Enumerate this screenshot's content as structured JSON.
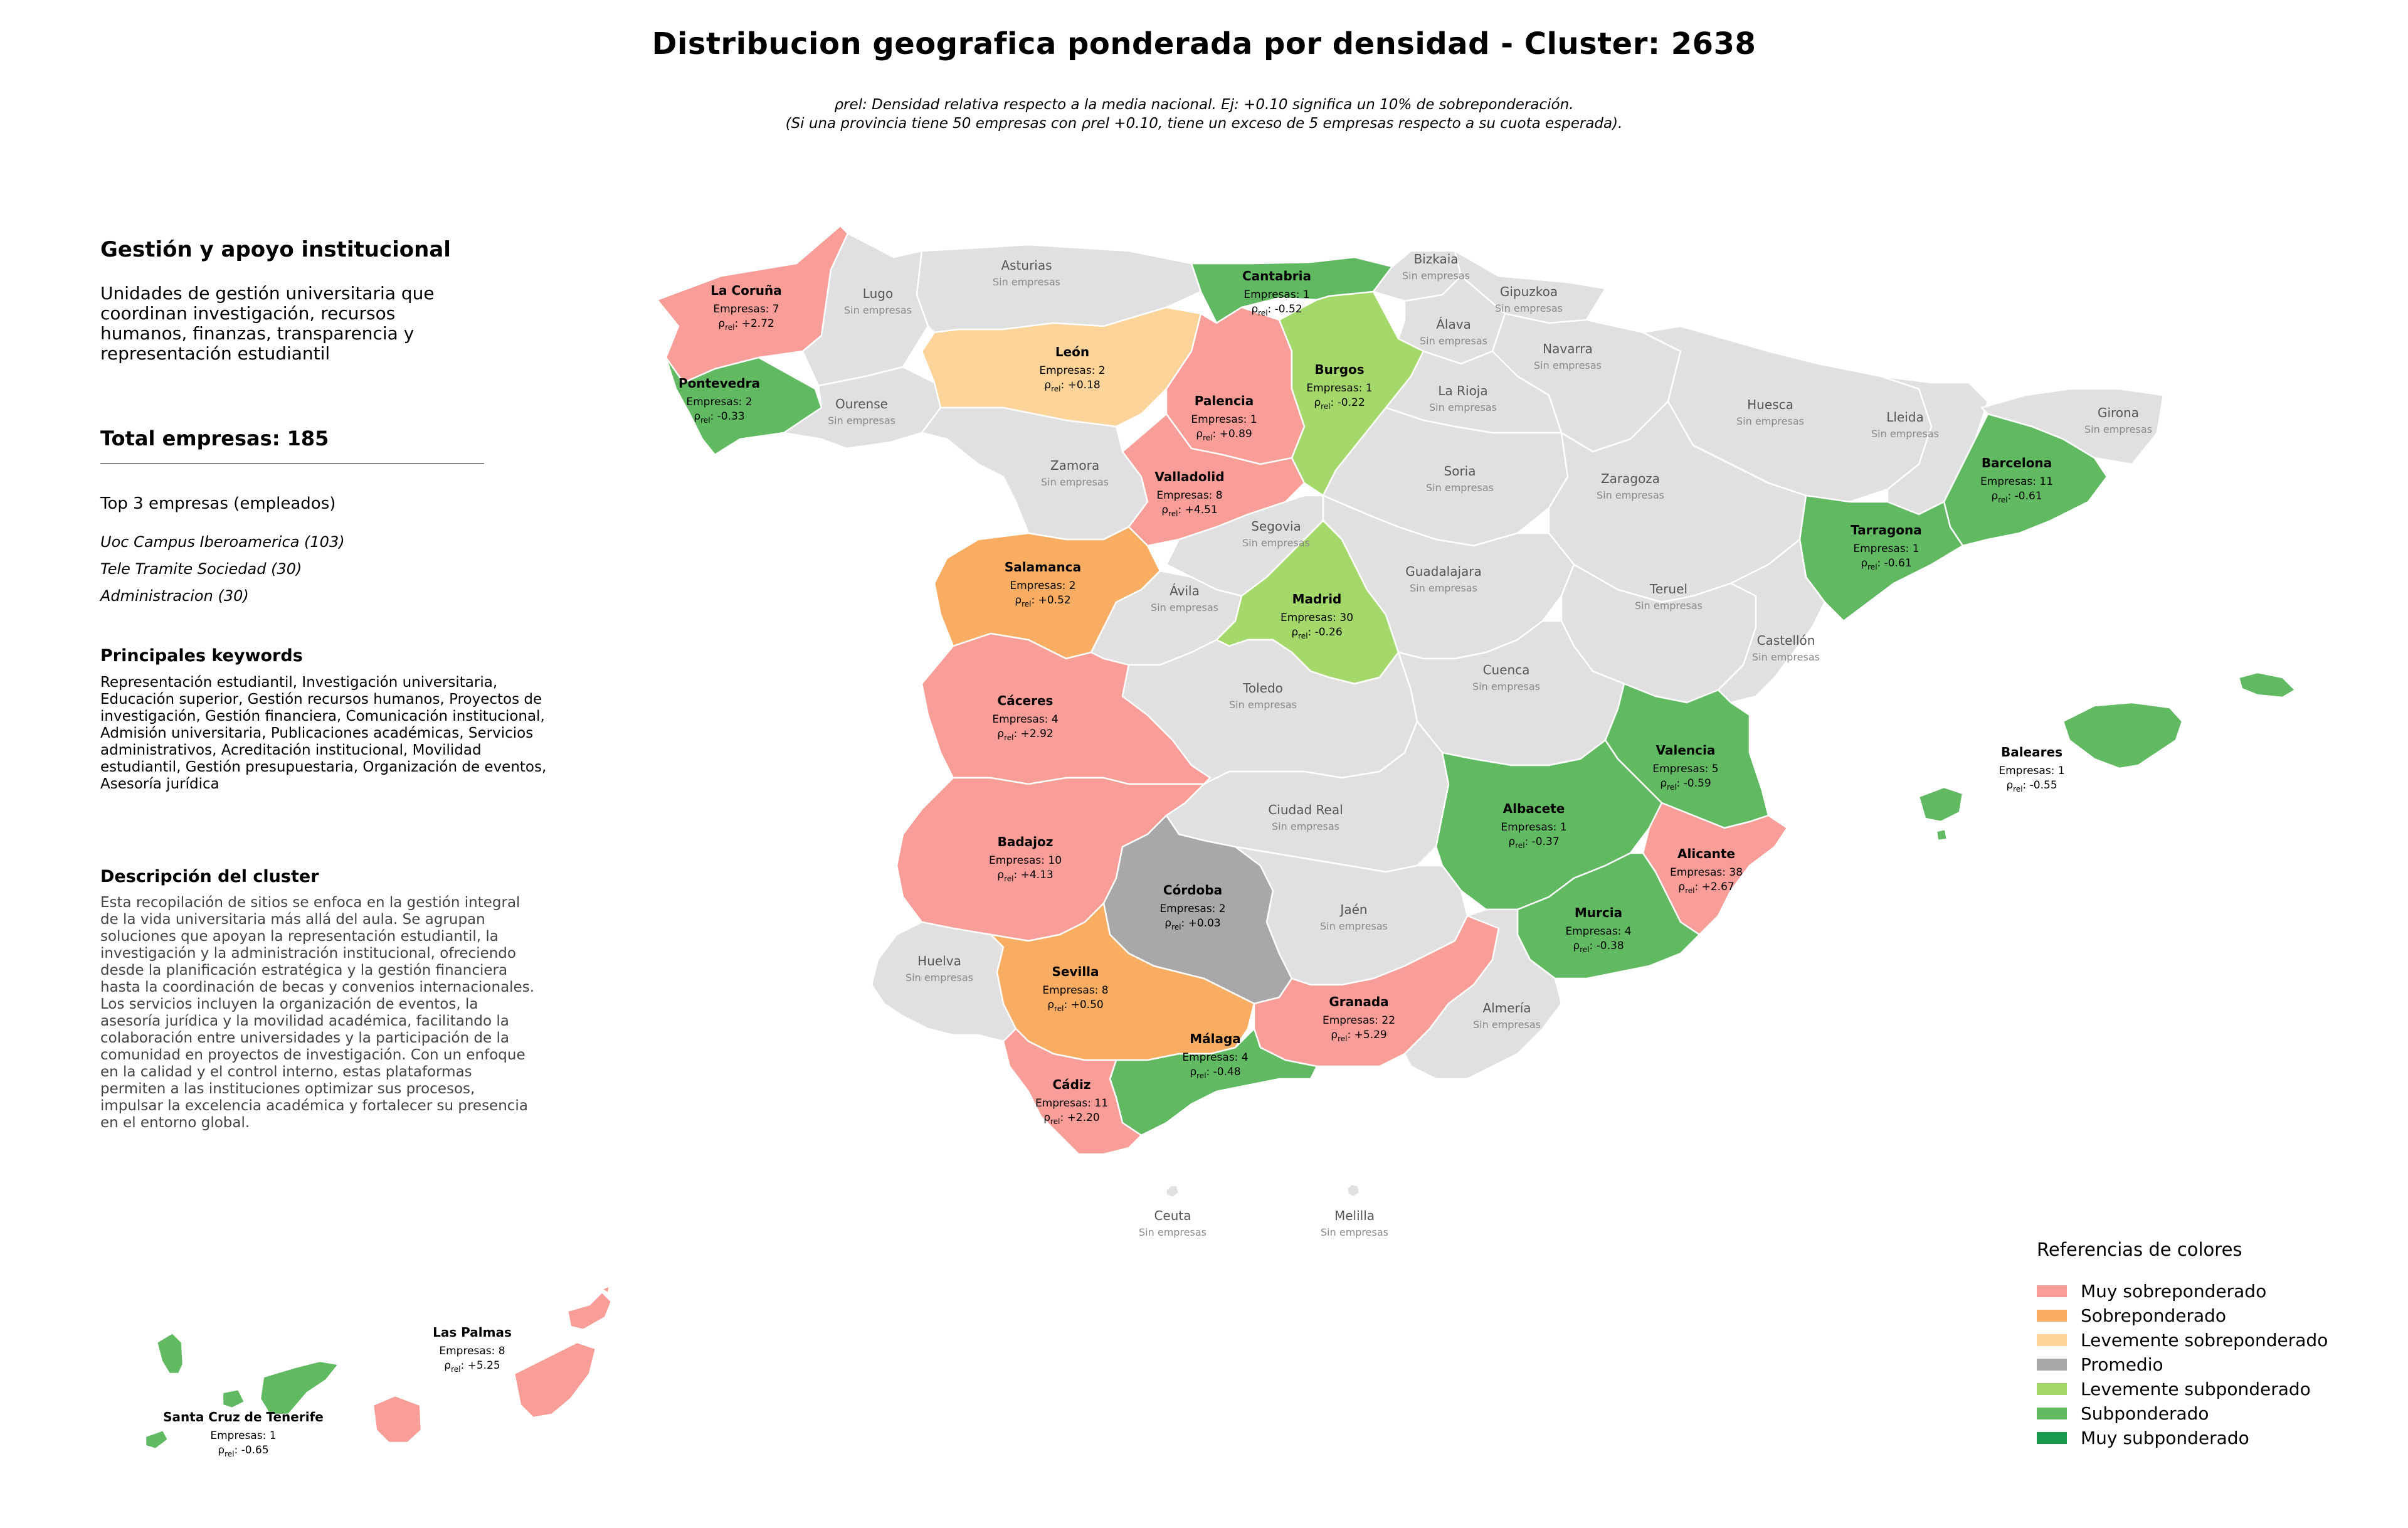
{
  "title": "Distribucion geografica ponderada por densidad - Cluster: 2638",
  "subtitle_line1": "ρrel: Densidad relativa respecto a la media nacional. Ej: +0.10 significa un 10% de sobreponderación.",
  "subtitle_line2": "(Si una provincia tiene 50 empresas con ρrel +0.10, tiene un exceso de 5 empresas respecto a su cuota esperada).",
  "sidebar": {
    "category_title": "Gestión y apoyo institucional",
    "category_description": "Unidades de gestión universitaria que coordinan investigación, recursos humanos, finanzas, transparencia y representación estudiantil",
    "total_label": "Total empresas: 185",
    "top3_title": "Top 3 empresas (empleados)",
    "top3": [
      "Uoc Campus Iberoamerica (103)",
      "Tele Tramite Sociedad (30)",
      "Administracion (30)"
    ],
    "keywords_title": "Principales keywords",
    "keywords": "Representación estudiantil, Investigación universitaria, Educación superior, Gestión recursos humanos, Proyectos de investigación, Gestión financiera, Comunicación institucional, Admisión universitaria, Publicaciones académicas, Servicios administrativos, Acreditación institucional, Movilidad estudiantil, Gestión presupuestaria, Organización de eventos, Asesoría jurídica",
    "description_title": "Descripción del cluster",
    "description": "Esta recopilación de sitios se enfoca en la gestión integral de la vida universitaria más allá del aula. Se agrupan soluciones que apoyan la representación estudiantil, la investigación y la administración institucional, ofreciendo desde la planificación estratégica y la gestión financiera hasta la coordinación de becas y convenios internacionales. Los servicios incluyen la organización de eventos, la asesoría jurídica y la movilidad académica, facilitando la colaboración entre universidades y la participación de la comunidad en proyectos de investigación. Con un enfoque en la calidad y el control interno, estas plataformas permiten a las instituciones optimizar sus procesos, impulsar la excelencia académica y fortalecer su presencia en el entorno global."
  },
  "colors": {
    "muy_sobre": "#f89d97",
    "sobre": "#f8ad62",
    "lev_sobre": "#fcd49a",
    "promedio": "#a8a8a8",
    "lev_sub": "#a5d86a",
    "sub": "#61ba62",
    "muy_sub": "#1a9850",
    "sin": "#e0e0e0",
    "border": "#ffffff"
  },
  "no_companies_label": "Sin empresas",
  "provinces": [
    {
      "name": "La Coruña",
      "companies": "Empresas: 7",
      "rho": "+2.72",
      "class": "muy_sobre"
    },
    {
      "name": "Lugo",
      "class": "sin"
    },
    {
      "name": "Asturias",
      "class": "sin"
    },
    {
      "name": "Cantabria",
      "companies": "Empresas: 1",
      "rho": "-0.52",
      "class": "sub"
    },
    {
      "name": "Bizkaia",
      "class": "sin"
    },
    {
      "name": "Gipuzkoa",
      "class": "sin"
    },
    {
      "name": "Álava",
      "class": "sin"
    },
    {
      "name": "Navarra",
      "class": "sin"
    },
    {
      "name": "Pontevedra",
      "companies": "Empresas: 2",
      "rho": "-0.33",
      "class": "sub"
    },
    {
      "name": "Ourense",
      "class": "sin"
    },
    {
      "name": "León",
      "companies": "Empresas: 2",
      "rho": "+0.18",
      "class": "lev_sobre"
    },
    {
      "name": "Palencia",
      "companies": "Empresas: 1",
      "rho": "+0.89",
      "class": "muy_sobre"
    },
    {
      "name": "Burgos",
      "companies": "Empresas: 1",
      "rho": "-0.22",
      "class": "lev_sub"
    },
    {
      "name": "La Rioja",
      "class": "sin"
    },
    {
      "name": "Huesca",
      "class": "sin"
    },
    {
      "name": "Lleida",
      "class": "sin"
    },
    {
      "name": "Girona",
      "class": "sin"
    },
    {
      "name": "Zamora",
      "class": "sin"
    },
    {
      "name": "Valladolid",
      "companies": "Empresas: 8",
      "rho": "+4.51",
      "class": "muy_sobre"
    },
    {
      "name": "Soria",
      "class": "sin"
    },
    {
      "name": "Zaragoza",
      "class": "sin"
    },
    {
      "name": "Barcelona",
      "companies": "Empresas: 11",
      "rho": "-0.61",
      "class": "sub"
    },
    {
      "name": "Tarragona",
      "companies": "Empresas: 1",
      "rho": "-0.61",
      "class": "sub"
    },
    {
      "name": "Salamanca",
      "companies": "Empresas: 2",
      "rho": "+0.52",
      "class": "sobre"
    },
    {
      "name": "Segovia",
      "class": "sin"
    },
    {
      "name": "Ávila",
      "class": "sin"
    },
    {
      "name": "Madrid",
      "companies": "Empresas: 30",
      "rho": "-0.26",
      "class": "lev_sub"
    },
    {
      "name": "Guadalajara",
      "class": "sin"
    },
    {
      "name": "Teruel",
      "class": "sin"
    },
    {
      "name": "Castellón",
      "class": "sin"
    },
    {
      "name": "Cáceres",
      "companies": "Empresas: 4",
      "rho": "+2.92",
      "class": "muy_sobre"
    },
    {
      "name": "Toledo",
      "class": "sin"
    },
    {
      "name": "Cuenca",
      "class": "sin"
    },
    {
      "name": "Valencia",
      "companies": "Empresas: 5",
      "rho": "-0.59",
      "class": "sub"
    },
    {
      "name": "Badajoz",
      "companies": "Empresas: 10",
      "rho": "+4.13",
      "class": "muy_sobre"
    },
    {
      "name": "Ciudad Real",
      "class": "sin"
    },
    {
      "name": "Albacete",
      "companies": "Empresas: 1",
      "rho": "-0.37",
      "class": "sub"
    },
    {
      "name": "Alicante",
      "companies": "Empresas: 38",
      "rho": "+2.67",
      "class": "muy_sobre"
    },
    {
      "name": "Córdoba",
      "companies": "Empresas: 2",
      "rho": "+0.03",
      "class": "promedio"
    },
    {
      "name": "Jaén",
      "class": "sin"
    },
    {
      "name": "Murcia",
      "companies": "Empresas: 4",
      "rho": "-0.38",
      "class": "sub"
    },
    {
      "name": "Huelva",
      "class": "sin"
    },
    {
      "name": "Sevilla",
      "companies": "Empresas: 8",
      "rho": "+0.50",
      "class": "sobre"
    },
    {
      "name": "Granada",
      "companies": "Empresas: 22",
      "rho": "+5.29",
      "class": "muy_sobre"
    },
    {
      "name": "Almería",
      "class": "sin"
    },
    {
      "name": "Málaga",
      "companies": "Empresas: 4",
      "rho": "-0.48",
      "class": "sub"
    },
    {
      "name": "Cádiz",
      "companies": "Empresas: 11",
      "rho": "+2.20",
      "class": "muy_sobre"
    },
    {
      "name": "Baleares",
      "companies": "Empresas: 1",
      "rho": "-0.55",
      "class": "sub"
    },
    {
      "name": "Ceuta",
      "class": "sin"
    },
    {
      "name": "Melilla",
      "class": "sin"
    },
    {
      "name": "Las Palmas",
      "companies": "Empresas: 8",
      "rho": "+5.25",
      "class": "muy_sobre"
    },
    {
      "name": "Santa Cruz de Tenerife",
      "companies": "Empresas: 1",
      "rho": "-0.65",
      "class": "sub"
    }
  ],
  "legend": {
    "title": "Referencias de colores",
    "items": [
      {
        "label": "Muy sobreponderado",
        "class": "muy_sobre"
      },
      {
        "label": "Sobreponderado",
        "class": "sobre"
      },
      {
        "label": "Levemente sobreponderado",
        "class": "lev_sobre"
      },
      {
        "label": "Promedio",
        "class": "promedio"
      },
      {
        "label": "Levemente subponderado",
        "class": "lev_sub"
      },
      {
        "label": "Subponderado",
        "class": "sub"
      },
      {
        "label": "Muy subponderado",
        "class": "muy_sub"
      }
    ]
  }
}
